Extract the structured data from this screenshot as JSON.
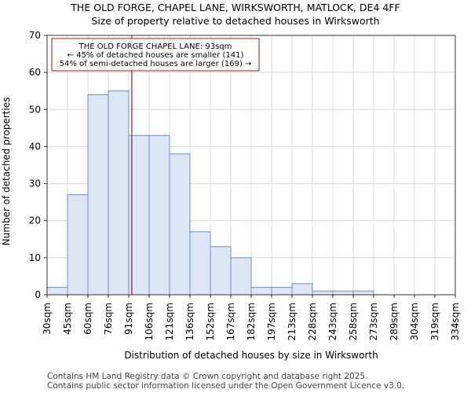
{
  "chart_data": {
    "type": "bar",
    "title": "THE OLD FORGE, CHAPEL LANE, WIRKSWORTH, MATLOCK, DE4 4FF",
    "subtitle": "Size of property relative to detached houses in Wirksworth",
    "xlabel": "Distribution of detached houses by size in Wirksworth",
    "ylabel": "Number of detached properties",
    "ylim": [
      0,
      70
    ],
    "yticks": [
      0,
      10,
      20,
      30,
      40,
      50,
      60,
      70
    ],
    "x_tick_labels": [
      "30sqm",
      "45sqm",
      "60sqm",
      "76sqm",
      "91sqm",
      "106sqm",
      "121sqm",
      "136sqm",
      "152sqm",
      "167sqm",
      "182sqm",
      "197sqm",
      "213sqm",
      "228sqm",
      "243sqm",
      "258sqm",
      "273sqm",
      "289sqm",
      "304sqm",
      "319sqm",
      "334sqm"
    ],
    "values": [
      2,
      27,
      54,
      55,
      43,
      43,
      38,
      17,
      13,
      10,
      2,
      2,
      3,
      1,
      1,
      1,
      0,
      0,
      0,
      0
    ],
    "grid": true,
    "bar_color": "#dce6f5",
    "bar_edge_color": "#6a8fcf",
    "marker": {
      "bin_position": 4.15,
      "color": "#a01818",
      "annotation_lines": [
        "THE OLD FORGE CHAPEL LANE: 93sqm",
        "← 45% of detached houses are smaller (141)",
        "54% of semi-detached houses are larger (169) →"
      ]
    }
  },
  "footer": {
    "line1": "Contains HM Land Registry data © Crown copyright and database right 2025.",
    "line2": "Contains public sector information licensed under the Open Government Licence v3.0."
  }
}
